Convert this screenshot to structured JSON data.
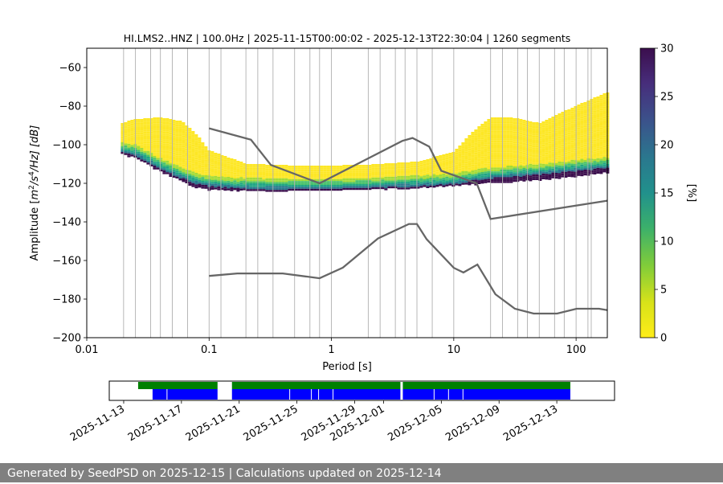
{
  "title": "HI.LMS2..HNZ | 100.0Hz | 2025-11-15T00:00:02 - 2025-12-13T22:30:04 | 1260 segments",
  "footer": "Generated by SeedPSD on 2025-12-15 | Calculations updated on 2025-12-14",
  "colors": {
    "noise_model": "#666666",
    "grid": "#b0b0b0",
    "availability_green": "#008000",
    "availability_blue": "#0000ff"
  },
  "chart_data": [
    {
      "type": "heatmap",
      "title": "HI.LMS2..HNZ | 100.0Hz | 2025-11-15T00:00:02 - 2025-12-13T22:30:04 | 1260 segments",
      "xlabel": "Period [s]",
      "ylabel_parts": [
        "Amplitude [",
        "m",
        "2",
        "/",
        "s",
        "4",
        "/Hz] [dB]"
      ],
      "x_scale": "log",
      "xlim": [
        0.01,
        180
      ],
      "ylim": [
        -200,
        -50
      ],
      "xticks": [
        0.01,
        0.1,
        1,
        10,
        100
      ],
      "xtick_labels": [
        "0.01",
        "0.1",
        "1",
        "10",
        "100"
      ],
      "yticks": [
        -200,
        -180,
        -160,
        -140,
        -120,
        -100,
        -80,
        -60
      ],
      "ytick_labels": [
        "−200",
        "−180",
        "−160",
        "−140",
        "−120",
        "−100",
        "−80",
        "−60"
      ],
      "grid_periods": [
        0.02,
        0.025,
        0.0333,
        0.04,
        0.05,
        0.0667,
        0.1,
        0.125,
        0.2,
        0.25,
        0.333,
        0.5,
        0.667,
        0.8,
        1,
        2,
        2.5,
        3.33,
        4,
        5,
        6.67,
        10,
        20,
        25,
        33.3,
        40,
        50,
        66.7,
        80,
        100,
        125,
        133
      ],
      "colorbar": {
        "label": "[%]",
        "range": [
          0,
          30
        ],
        "ticks": [
          0,
          5,
          10,
          15,
          20,
          25,
          30
        ]
      },
      "series": [
        {
          "name": "nhnm",
          "x": [
            0.1,
            0.22,
            0.32,
            0.8,
            3.8,
            4.6,
            6.3,
            7.9,
            15.4,
            20,
            180
          ],
          "y": [
            -91.5,
            -97.4,
            -110.5,
            -120,
            -98,
            -96.5,
            -101,
            -113.5,
            -120,
            -138.5,
            -129
          ]
        },
        {
          "name": "nlnm",
          "x": [
            0.1,
            0.17,
            0.4,
            0.8,
            1.24,
            2.4,
            4.3,
            5.0,
            6.0,
            10,
            12,
            15.6,
            21.9,
            31.6,
            45,
            70,
            101,
            154,
            180
          ],
          "y": [
            -168,
            -166.7,
            -166.7,
            -169.2,
            -163.7,
            -148.6,
            -141.1,
            -141.1,
            -149,
            -163.8,
            -166.2,
            -162.1,
            -177.5,
            -185,
            -187.5,
            -187.5,
            -185,
            -185,
            -185.7
          ]
        },
        {
          "name": "psd_mode",
          "x": [
            0.019,
            0.025,
            0.04,
            0.06,
            0.08,
            0.1,
            0.15,
            0.3,
            0.5,
            1,
            2,
            5,
            10,
            15,
            20,
            30,
            50,
            100,
            180
          ],
          "y": [
            -103.5,
            -105,
            -112,
            -117,
            -120,
            -121,
            -122,
            -122.5,
            -122.5,
            -122.5,
            -122,
            -121,
            -120,
            -118,
            -117,
            -116,
            -115,
            -113,
            -111.5
          ]
        },
        {
          "name": "psd_upper",
          "x": [
            0.019,
            0.025,
            0.04,
            0.06,
            0.08,
            0.1,
            0.2,
            0.5,
            1,
            2,
            5,
            10,
            14,
            20,
            30,
            50,
            100,
            180
          ],
          "y": [
            -89,
            -87,
            -86,
            -88,
            -95,
            -103,
            -110,
            -111,
            -111,
            -110.5,
            -109,
            -104,
            -94,
            -86,
            -86,
            -89,
            -80,
            -73
          ]
        },
        {
          "name": "psd_lower",
          "x": [
            0.019,
            0.025,
            0.04,
            0.06,
            0.08,
            0.1,
            0.2,
            0.5,
            1,
            2,
            5,
            10,
            20,
            50,
            100,
            180
          ],
          "y": [
            -104.5,
            -106.5,
            -113.5,
            -118.5,
            -122,
            -123,
            -123.5,
            -123.5,
            -123.5,
            -123,
            -122,
            -121,
            -119.5,
            -118,
            -116,
            -114
          ]
        }
      ]
    },
    {
      "type": "bar",
      "name": "data_availability",
      "xlim": [
        "2025-11-12",
        "2025-12-17"
      ],
      "xtick_labels": [
        "2025-11-13",
        "2025-11-17",
        "2025-11-21",
        "2025-11-25",
        "2025-11-29",
        "2025-12-01",
        "2025-12-05",
        "2025-12-09",
        "2025-12-13"
      ],
      "xtick_dates": [
        "2025-11-13",
        "2025-11-17",
        "2025-11-21",
        "2025-11-25",
        "2025-11-29",
        "2025-12-01",
        "2025-12-05",
        "2025-12-09",
        "2025-12-13"
      ],
      "green_segments": [
        [
          "2025-11-14T00:00",
          "2025-11-19T12:00"
        ],
        [
          "2025-11-20T12:00",
          "2025-12-02T04:00"
        ],
        [
          "2025-12-02T08:00",
          "2025-12-13T22:30"
        ]
      ],
      "blue_segments": [
        [
          "2025-11-15T00:00",
          "2025-11-19T12:00"
        ],
        [
          "2025-11-20T12:00",
          "2025-12-02T04:00"
        ],
        [
          "2025-12-02T08:00",
          "2025-12-13T22:30"
        ]
      ],
      "blue_gaps": [
        "2025-11-16T00:00",
        "2025-11-24T12:00",
        "2025-11-26T00:00",
        "2025-11-26T12:00",
        "2025-11-27T12:00",
        "2025-12-04T12:00",
        "2025-12-05T12:00",
        "2025-12-06T12:00"
      ]
    }
  ]
}
